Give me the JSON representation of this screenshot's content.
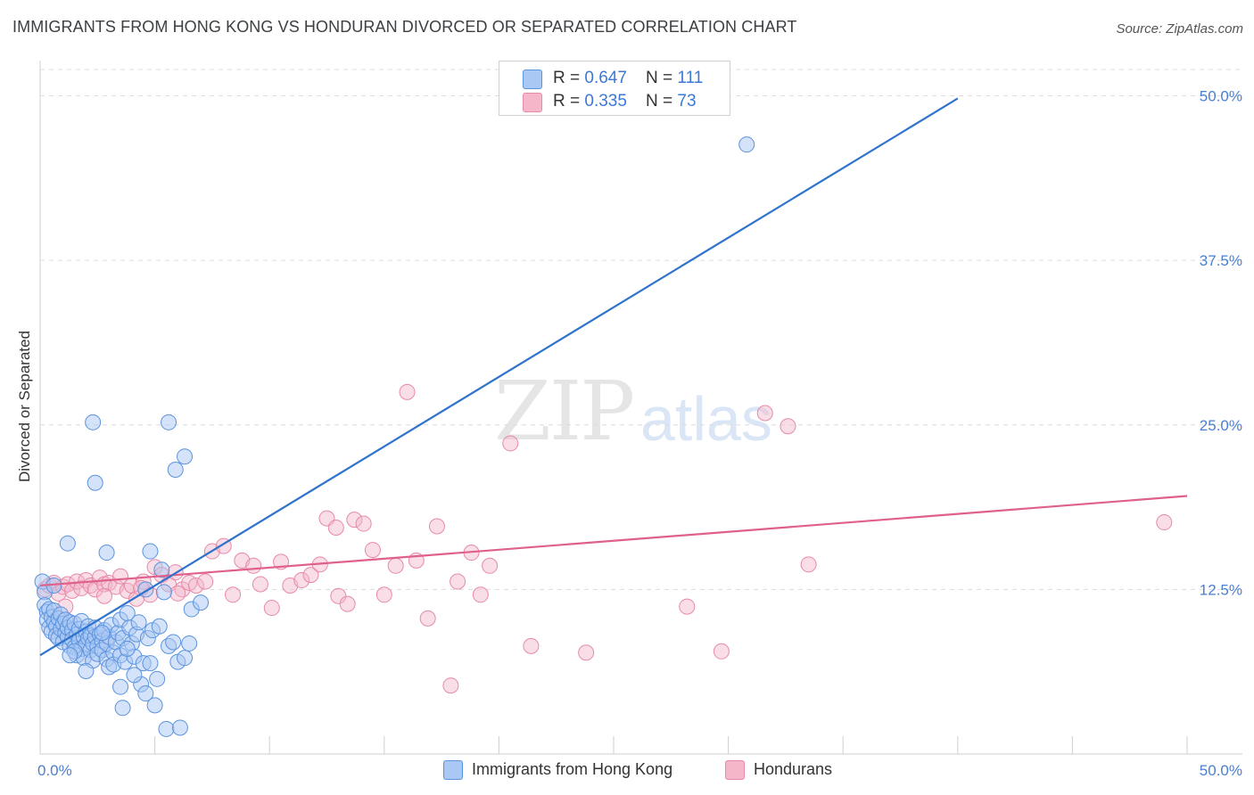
{
  "header": {
    "title": "IMMIGRANTS FROM HONG KONG VS HONDURAN DIVORCED OR SEPARATED CORRELATION CHART",
    "source": "Source: ZipAtlas.com"
  },
  "watermark": {
    "zip": "ZIP",
    "atlas": "atlas"
  },
  "legend_top": {
    "rows": [
      {
        "r_label": "R = ",
        "r_value": "0.647",
        "n_label": "N = ",
        "n_value": "111",
        "color": "#a9c8f3"
      },
      {
        "r_label": "R = ",
        "r_value": "0.335",
        "n_label": "N = ",
        "n_value": "73",
        "color": "#f5b6c9"
      }
    ]
  },
  "legend_bottom": [
    {
      "label": "Immigrants from Hong Kong",
      "color": "#a9c8f3"
    },
    {
      "label": "Hondurans",
      "color": "#f5b6c9"
    }
  ],
  "colors": {
    "blue_fill": "#a9c8f3",
    "blue_stroke": "#5b93de",
    "blue_line": "#2f73cc",
    "pink_fill": "#f5b6c9",
    "pink_stroke": "#e68aa9",
    "pink_line": "#e0608c",
    "grid": "#dcdcdc"
  },
  "chart_data": {
    "type": "scatter",
    "title": "IMMIGRANTS FROM HONG KONG VS HONDURAN DIVORCED OR SEPARATED CORRELATION CHART",
    "xlabel": "",
    "ylabel": "Divorced or Separated",
    "xlim": [
      0,
      50
    ],
    "ylim": [
      0,
      52
    ],
    "x_tick_labels": [
      "0.0%",
      "50.0%"
    ],
    "y_ticks": [
      12.5,
      25.0,
      37.5,
      50.0
    ],
    "y_tick_labels": [
      "12.5%",
      "25.0%",
      "37.5%",
      "50.0%"
    ],
    "grid": true,
    "legend_placement": "top-center",
    "series": [
      {
        "name": "Immigrants from Hong Kong",
        "R": 0.647,
        "N": 111,
        "trend": {
          "x": [
            0,
            40
          ],
          "y": [
            7.5,
            49.8
          ]
        },
        "points": [
          [
            0.1,
            13.1
          ],
          [
            0.2,
            12.3
          ],
          [
            0.2,
            11.3
          ],
          [
            0.3,
            10.8
          ],
          [
            0.3,
            10.2
          ],
          [
            0.4,
            9.6
          ],
          [
            0.4,
            11.0
          ],
          [
            0.5,
            10.4
          ],
          [
            0.5,
            9.3
          ],
          [
            0.6,
            10.0
          ],
          [
            0.6,
            10.9
          ],
          [
            0.7,
            9.7
          ],
          [
            0.7,
            9.0
          ],
          [
            0.8,
            10.3
          ],
          [
            0.8,
            8.8
          ],
          [
            0.9,
            9.5
          ],
          [
            0.9,
            10.6
          ],
          [
            1.0,
            9.9
          ],
          [
            1.0,
            8.5
          ],
          [
            1.1,
            9.2
          ],
          [
            1.1,
            10.2
          ],
          [
            1.2,
            8.9
          ],
          [
            1.2,
            9.6
          ],
          [
            1.3,
            8.2
          ],
          [
            1.3,
            10.0
          ],
          [
            1.4,
            9.4
          ],
          [
            1.4,
            8.7
          ],
          [
            1.5,
            9.9
          ],
          [
            1.5,
            8.1
          ],
          [
            1.6,
            9.1
          ],
          [
            1.6,
            7.5
          ],
          [
            1.7,
            8.6
          ],
          [
            1.7,
            9.5
          ],
          [
            1.8,
            8.0
          ],
          [
            1.8,
            10.1
          ],
          [
            1.9,
            8.9
          ],
          [
            1.9,
            7.3
          ],
          [
            2.0,
            9.3
          ],
          [
            2.0,
            8.3
          ],
          [
            2.1,
            8.8
          ],
          [
            2.1,
            9.7
          ],
          [
            2.2,
            7.9
          ],
          [
            2.2,
            9.0
          ],
          [
            2.3,
            8.4
          ],
          [
            2.3,
            7.1
          ],
          [
            2.4,
            8.9
          ],
          [
            2.4,
            9.6
          ],
          [
            2.5,
            8.2
          ],
          [
            2.5,
            7.6
          ],
          [
            2.6,
            9.1
          ],
          [
            2.7,
            8.6
          ],
          [
            2.7,
            7.9
          ],
          [
            2.8,
            9.4
          ],
          [
            2.9,
            7.2
          ],
          [
            2.9,
            8.4
          ],
          [
            3.0,
            6.6
          ],
          [
            3.0,
            8.9
          ],
          [
            3.1,
            9.8
          ],
          [
            3.2,
            7.7
          ],
          [
            3.2,
            6.8
          ],
          [
            3.3,
            8.5
          ],
          [
            3.4,
            9.2
          ],
          [
            3.5,
            7.5
          ],
          [
            3.5,
            10.2
          ],
          [
            3.6,
            8.8
          ],
          [
            3.7,
            7.0
          ],
          [
            3.8,
            10.7
          ],
          [
            3.9,
            9.6
          ],
          [
            4.0,
            8.4
          ],
          [
            4.1,
            7.4
          ],
          [
            4.2,
            9.1
          ],
          [
            4.3,
            10.0
          ],
          [
            4.4,
            5.3
          ],
          [
            4.5,
            6.9
          ],
          [
            4.6,
            4.6
          ],
          [
            4.7,
            8.8
          ],
          [
            4.8,
            6.9
          ],
          [
            4.9,
            9.4
          ],
          [
            5.0,
            3.7
          ],
          [
            5.1,
            5.7
          ],
          [
            5.2,
            9.7
          ],
          [
            5.3,
            14.0
          ],
          [
            5.4,
            12.3
          ],
          [
            5.5,
            1.9
          ],
          [
            5.6,
            8.2
          ],
          [
            5.8,
            8.5
          ],
          [
            6.0,
            7.0
          ],
          [
            6.1,
            2.0
          ],
          [
            6.3,
            7.3
          ],
          [
            6.5,
            8.4
          ],
          [
            6.6,
            11.0
          ],
          [
            1.2,
            16.0
          ],
          [
            2.3,
            25.2
          ],
          [
            2.4,
            20.6
          ],
          [
            2.9,
            15.3
          ],
          [
            3.6,
            3.5
          ],
          [
            4.8,
            15.4
          ],
          [
            5.6,
            25.2
          ],
          [
            5.9,
            21.6
          ],
          [
            6.3,
            22.6
          ],
          [
            1.5,
            7.8
          ],
          [
            2.0,
            6.3
          ],
          [
            3.8,
            8.0
          ],
          [
            4.1,
            6.0
          ],
          [
            4.6,
            12.5
          ],
          [
            3.5,
            5.1
          ],
          [
            2.7,
            9.2
          ],
          [
            1.3,
            7.5
          ],
          [
            0.6,
            12.8
          ],
          [
            7.0,
            11.5
          ],
          [
            30.8,
            46.3
          ]
        ]
      },
      {
        "name": "Hondurans",
        "R": 0.335,
        "N": 73,
        "trend": {
          "x": [
            0,
            50
          ],
          "y": [
            12.8,
            19.6
          ]
        },
        "points": [
          [
            0.2,
            12.5
          ],
          [
            0.4,
            12.8
          ],
          [
            0.6,
            13.0
          ],
          [
            0.8,
            12.2
          ],
          [
            1.0,
            12.7
          ],
          [
            1.2,
            12.9
          ],
          [
            1.4,
            12.4
          ],
          [
            1.6,
            13.1
          ],
          [
            1.8,
            12.6
          ],
          [
            2.0,
            13.2
          ],
          [
            2.2,
            12.8
          ],
          [
            2.4,
            12.5
          ],
          [
            2.6,
            13.4
          ],
          [
            2.8,
            12.9
          ],
          [
            3.0,
            13.0
          ],
          [
            3.3,
            12.7
          ],
          [
            3.5,
            13.5
          ],
          [
            3.8,
            12.4
          ],
          [
            4.0,
            12.8
          ],
          [
            4.2,
            11.8
          ],
          [
            4.5,
            13.1
          ],
          [
            4.8,
            12.1
          ],
          [
            5.0,
            14.2
          ],
          [
            5.3,
            13.6
          ],
          [
            5.6,
            12.9
          ],
          [
            5.9,
            13.8
          ],
          [
            6.2,
            12.5
          ],
          [
            6.5,
            13.0
          ],
          [
            6.8,
            12.8
          ],
          [
            7.2,
            13.1
          ],
          [
            7.5,
            15.4
          ],
          [
            8.0,
            15.8
          ],
          [
            8.4,
            12.1
          ],
          [
            8.8,
            14.7
          ],
          [
            9.3,
            14.3
          ],
          [
            9.6,
            12.9
          ],
          [
            10.1,
            11.1
          ],
          [
            10.5,
            14.6
          ],
          [
            10.9,
            12.8
          ],
          [
            11.4,
            13.2
          ],
          [
            11.8,
            13.6
          ],
          [
            12.2,
            14.4
          ],
          [
            12.5,
            17.9
          ],
          [
            12.9,
            17.2
          ],
          [
            13.0,
            12.0
          ],
          [
            13.4,
            11.4
          ],
          [
            13.7,
            17.8
          ],
          [
            14.1,
            17.5
          ],
          [
            14.5,
            15.5
          ],
          [
            15.0,
            12.1
          ],
          [
            15.5,
            14.3
          ],
          [
            16.0,
            27.5
          ],
          [
            16.4,
            14.7
          ],
          [
            16.9,
            10.3
          ],
          [
            17.3,
            17.3
          ],
          [
            17.9,
            5.2
          ],
          [
            18.2,
            13.1
          ],
          [
            18.8,
            15.3
          ],
          [
            19.2,
            12.1
          ],
          [
            19.6,
            14.3
          ],
          [
            20.5,
            23.6
          ],
          [
            21.4,
            8.2
          ],
          [
            23.8,
            7.7
          ],
          [
            28.2,
            11.2
          ],
          [
            29.7,
            7.8
          ],
          [
            31.6,
            25.9
          ],
          [
            32.6,
            24.9
          ],
          [
            33.5,
            14.4
          ],
          [
            49.0,
            17.6
          ],
          [
            1.1,
            11.2
          ],
          [
            2.8,
            12.0
          ],
          [
            4.4,
            12.6
          ],
          [
            6.0,
            12.2
          ]
        ]
      }
    ]
  }
}
